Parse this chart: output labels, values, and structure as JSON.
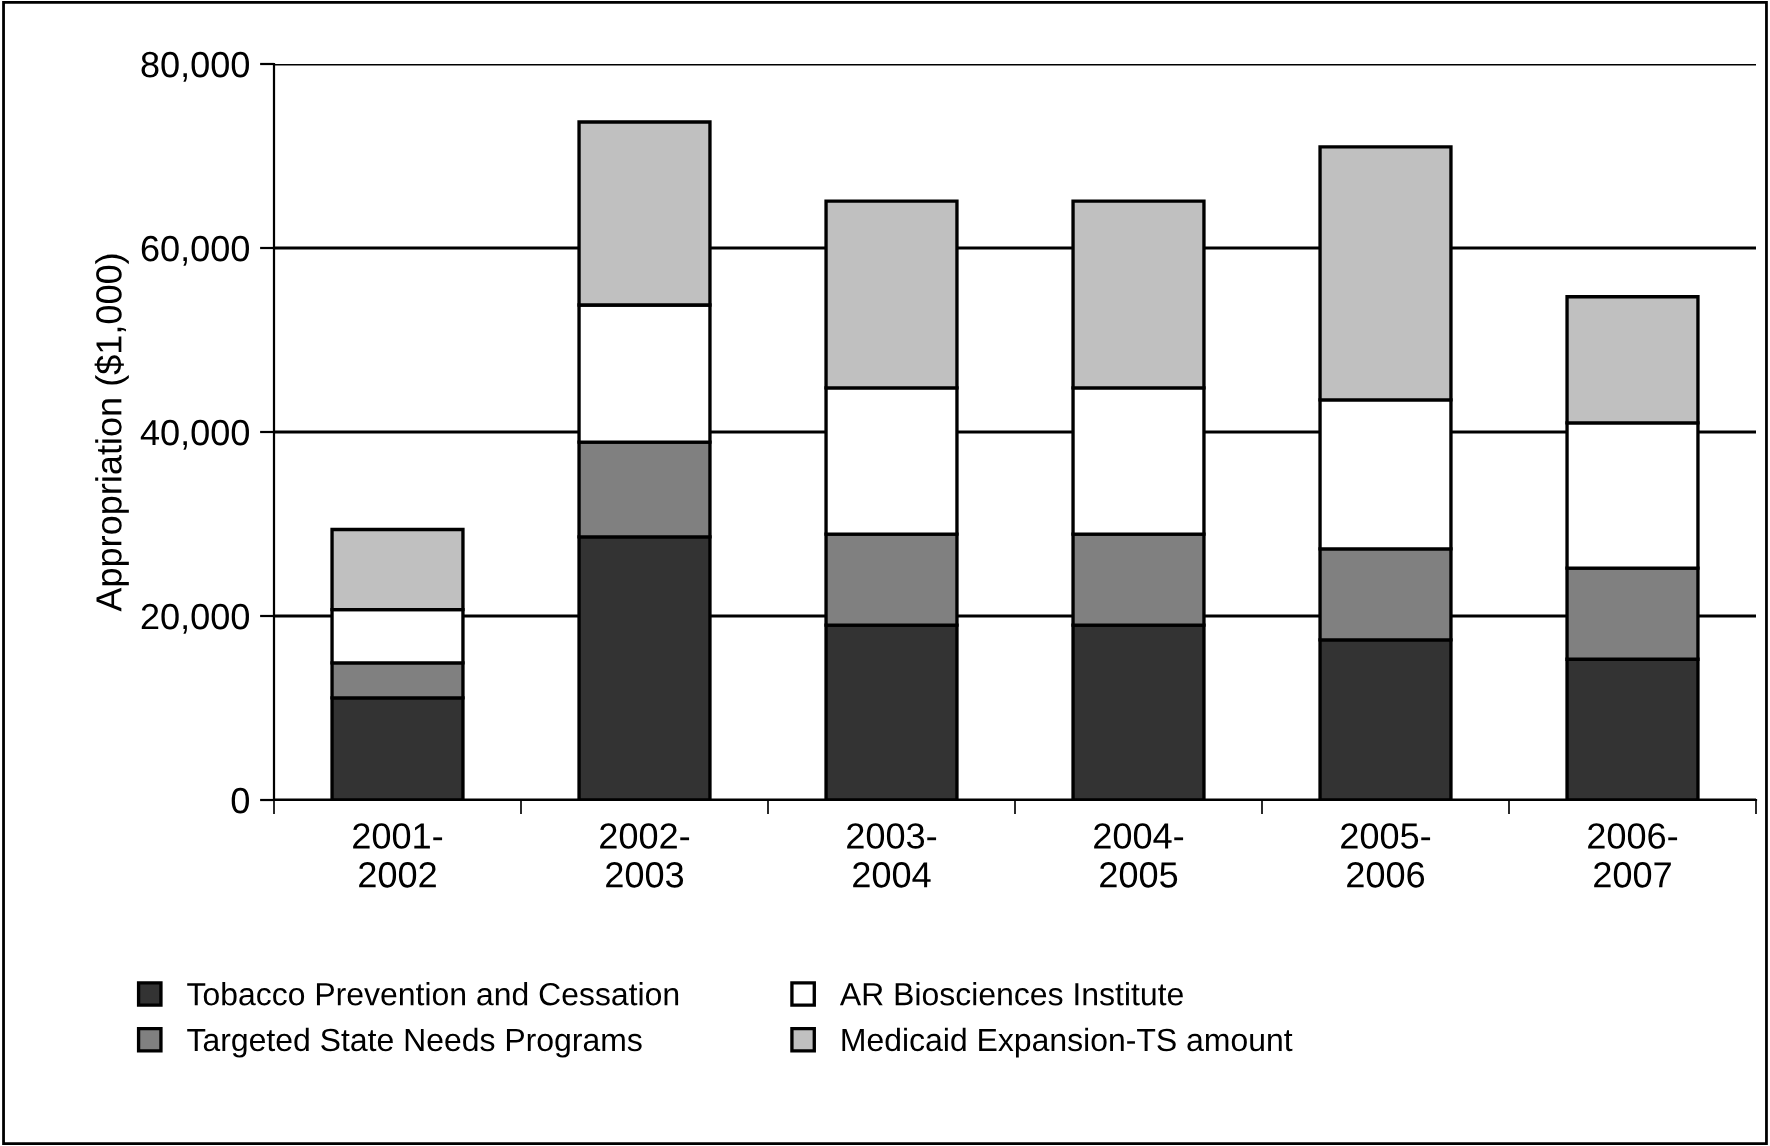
{
  "chart_data": {
    "type": "bar",
    "stacked": true,
    "ylabel": "Appropriation ($1,000)",
    "categories": [
      "2001-\n2002",
      "2002-\n2003",
      "2003-\n2004",
      "2004-\n2005",
      "2005-\n2006",
      "2006-\n2007"
    ],
    "series": [
      {
        "name": "Tobacco Prevention and Cessation",
        "color": "#333333",
        "values": [
          11100,
          28600,
          19000,
          19000,
          17400,
          15300
        ]
      },
      {
        "name": "Targeted State Needs Programs",
        "color": "#808080",
        "values": [
          3800,
          10300,
          9900,
          9900,
          9900,
          9900
        ]
      },
      {
        "name": "AR Biosciences Institute",
        "color": "#ffffff",
        "values": [
          5800,
          14900,
          15900,
          15900,
          16200,
          15800
        ]
      },
      {
        "name": "Medicaid Expansion-TS amount",
        "color": "#c0c0c0",
        "values": [
          8700,
          19900,
          20300,
          20300,
          27500,
          13700
        ]
      }
    ],
    "ylim": [
      0,
      80000
    ],
    "yticks": [
      {
        "value": 0,
        "label": "0"
      },
      {
        "value": 20000,
        "label": "20,000"
      },
      {
        "value": 40000,
        "label": "40,000"
      },
      {
        "value": 60000,
        "label": "60,000"
      },
      {
        "value": 80000,
        "label": "80,000"
      }
    ],
    "grid": "y",
    "legend": "bottom"
  }
}
